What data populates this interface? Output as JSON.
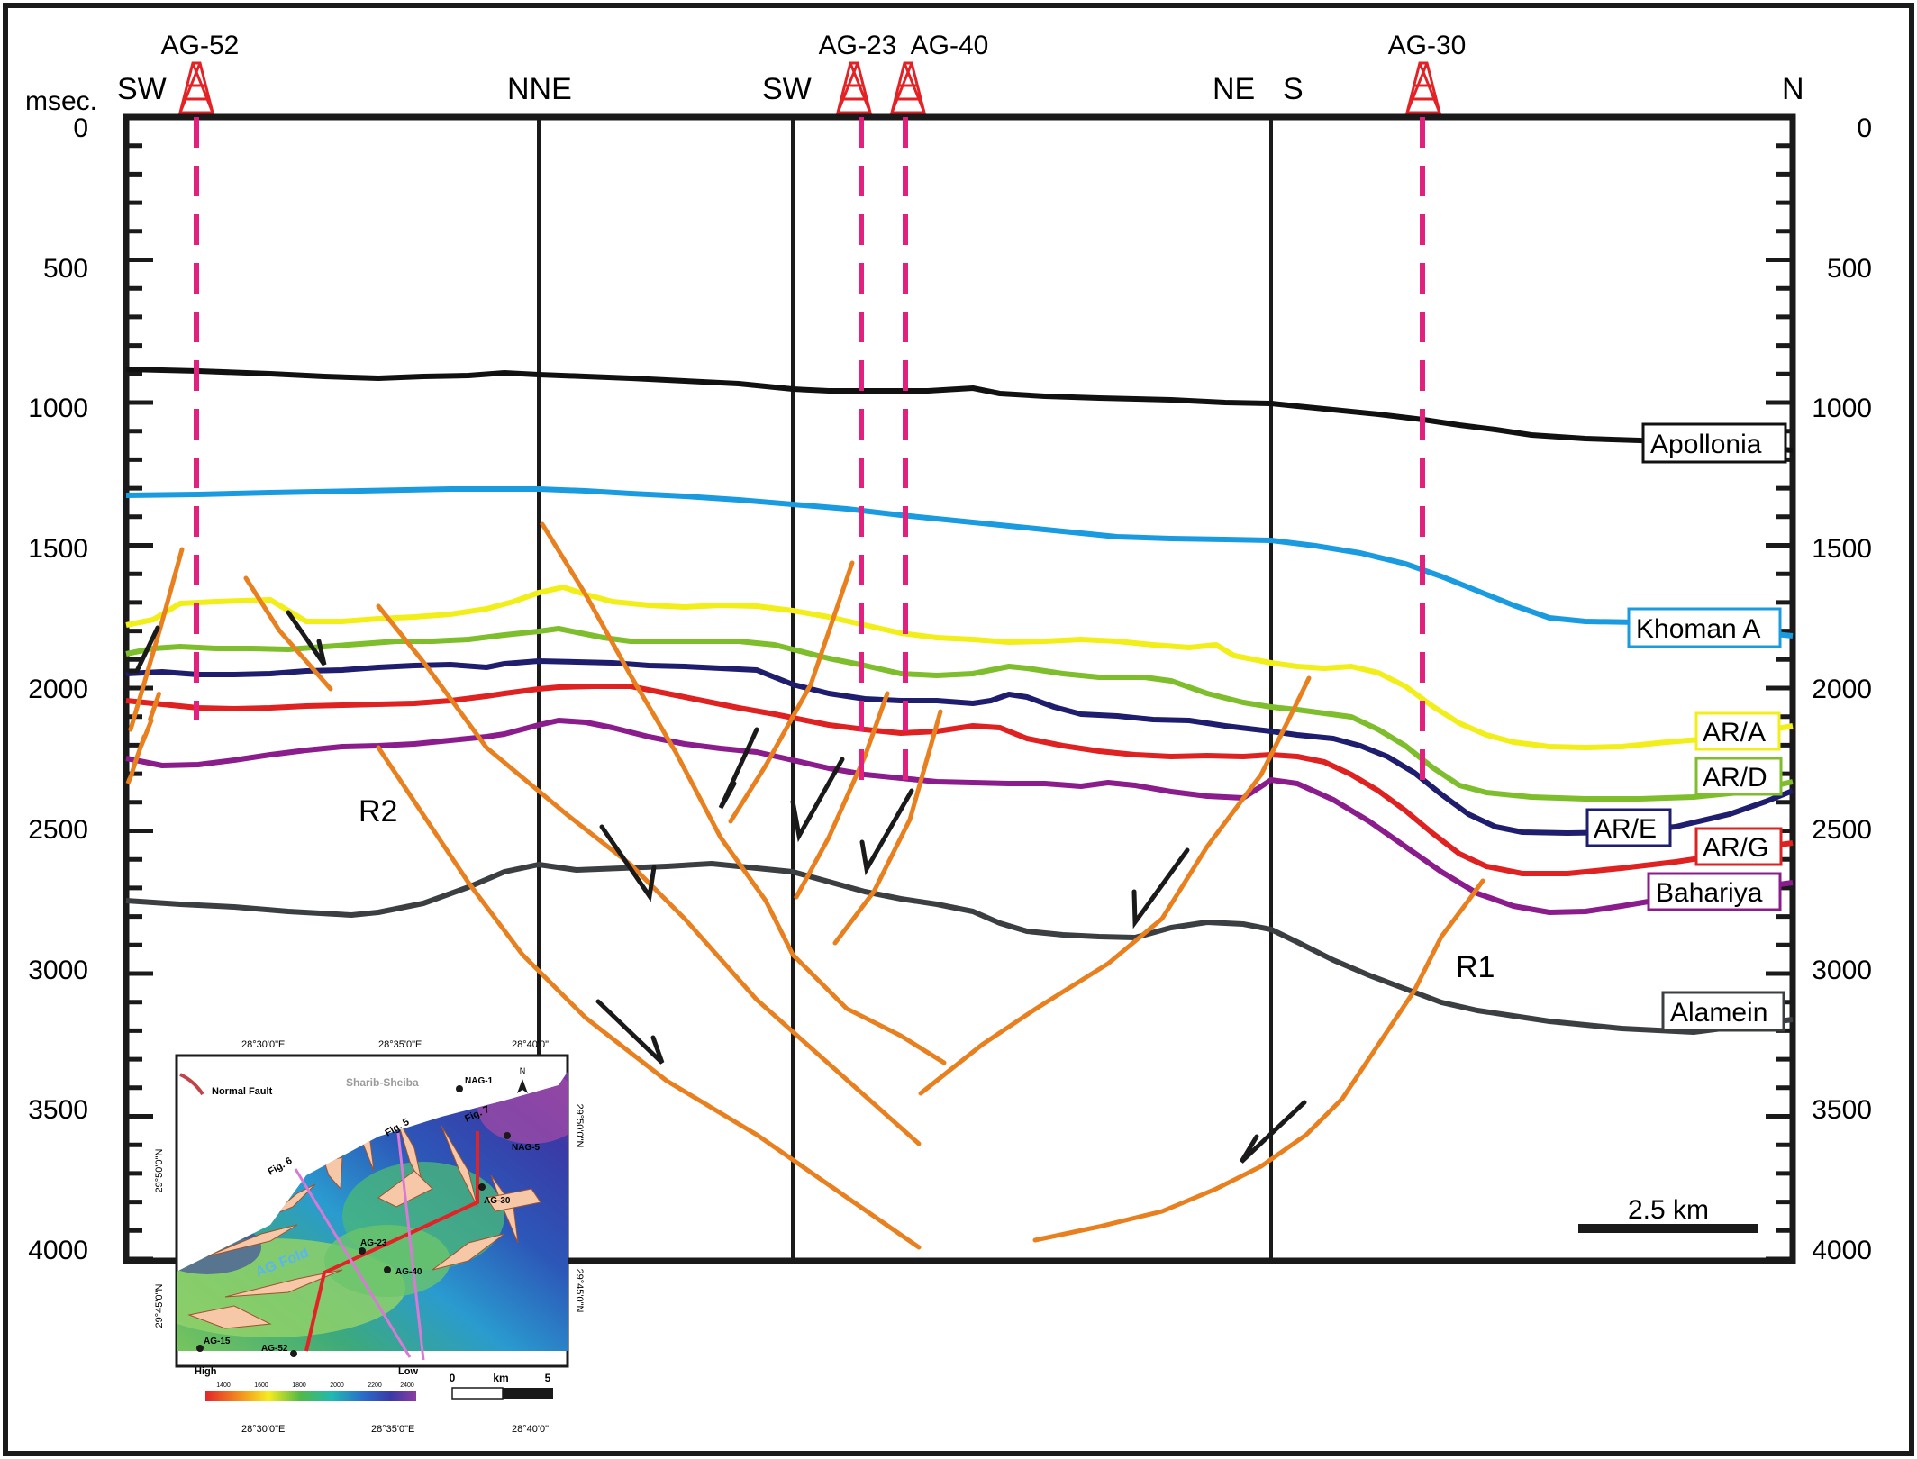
{
  "y_axis": {
    "unit": "msec.",
    "ticks": [
      "0",
      "500",
      "1000",
      "1500",
      "2000",
      "2500",
      "3000",
      "3500",
      "4000"
    ],
    "range": [
      0,
      4000
    ]
  },
  "wells": [
    "AG-52",
    "AG-23",
    "AG-40",
    "AG-30"
  ],
  "directions": [
    "SW",
    "NNE",
    "SW",
    "NE",
    "S",
    "N"
  ],
  "horizons": [
    {
      "name": "Apollonia",
      "color": "#111111"
    },
    {
      "name": "Khoman A",
      "color": "#1a9be0"
    },
    {
      "name": "AR/A",
      "color": "#f2ee1a"
    },
    {
      "name": "AR/D",
      "color": "#7ebd2b"
    },
    {
      "name": "AR/E",
      "color": "#1e1d6e"
    },
    {
      "name": "AR/G",
      "color": "#de2222"
    },
    {
      "name": "Bahariya",
      "color": "#8a1c8c"
    },
    {
      "name": "Alamein",
      "color": "#3b3f42"
    }
  ],
  "fault_labels": [
    "R2",
    "R1"
  ],
  "fault_color": "#e8801f",
  "well_color": "#e2207e",
  "rig_color": "#e32226",
  "scale_bar": {
    "label": "2.5 km"
  },
  "inset": {
    "legend_label": "Normal Fault",
    "area_name": "Sharib-Sheiba",
    "fold_label": "AG Fold",
    "north": "N",
    "fig_labels": [
      "Fig. 6",
      "Fig. 5",
      "Fig. 7"
    ],
    "wells": [
      "NAG-1",
      "NAG-5",
      "AG-30",
      "AG-23",
      "AG-40",
      "AG-15",
      "AG-52"
    ],
    "top_coords": [
      "28°30'0\"E",
      "28°35'0\"E",
      "28°40'0\""
    ],
    "bottom_coords": [
      "28°30'0\"E",
      "28°35'0\"E",
      "28°40'0\""
    ],
    "left_coords": [
      "29°50'0\"N",
      "29°45'0\"N"
    ],
    "right_coords": [
      "29°50'0\"N",
      "29°45'0\"N"
    ],
    "high_label": "High",
    "low_label": "Low",
    "color_ticks": [
      "1400",
      "1600",
      "1800",
      "2000",
      "2200",
      "2400"
    ],
    "scale": [
      "0",
      "km",
      "5"
    ]
  }
}
